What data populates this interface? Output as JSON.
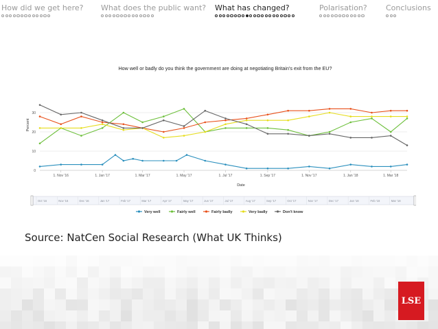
{
  "nav": {
    "sections": [
      {
        "label": "How did we get here?",
        "dots": 13,
        "active": false,
        "filled": -1
      },
      {
        "label": "What does the public want?",
        "dots": 14,
        "active": false,
        "filled": -1
      },
      {
        "label": "What has changed?",
        "dots": 21,
        "active": true,
        "filled": 8
      },
      {
        "label": "Polarisation?",
        "dots": 12,
        "active": false,
        "filled": -1
      },
      {
        "label": "Conclusions",
        "dots": 3,
        "active": false,
        "filled": -1
      }
    ]
  },
  "source_text": "Source: NatCen Social Research (What UK Thinks)",
  "logo_text": "LSE",
  "colors": {
    "very_well": "#2a8fbd",
    "fairly_well": "#6cbf3a",
    "fairly_badly": "#e8501a",
    "very_badly": "#e6dd1e",
    "dont_know": "#666666",
    "logo": "#d61a21"
  },
  "chart_data": {
    "type": "line",
    "title": "How well or badly do you think the government are doing at negotiating Britain's exit from the EU?",
    "xlabel": "Date",
    "ylabel": "Percent",
    "ylim": [
      0,
      45
    ],
    "yticks": [
      0,
      10,
      20,
      30
    ],
    "x_tick_labels": [
      "1. Nov '16",
      "1. Jan '17",
      "1. Mar '17",
      "1. May '17",
      "1. Jul '17",
      "1. Sep '17",
      "1. Nov '17",
      "1. Jan '18",
      "1. Mar '18"
    ],
    "navigator_labels": [
      "Oct '16",
      "Nov '16",
      "Dec '16",
      "Jan '17",
      "Feb '17",
      "Mar '17",
      "Apr '17",
      "May '17",
      "Jun '17",
      "Jul '17",
      "Aug '17",
      "Sep '17",
      "Oct '17",
      "Nov '17",
      "Dec '17",
      "Jan '18",
      "Feb '18",
      "Mar '18"
    ],
    "legend_position": "bottom",
    "grid": true,
    "series": [
      {
        "name": "Very well",
        "color_key": "very_well",
        "x": [
          "2016-10-01",
          "2016-11-01",
          "2016-12-01",
          "2017-01-01",
          "2017-01-20",
          "2017-02-01",
          "2017-02-15",
          "2017-03-01",
          "2017-04-01",
          "2017-04-20",
          "2017-05-05",
          "2017-06-01",
          "2017-07-01",
          "2017-08-01",
          "2017-09-01",
          "2017-10-01",
          "2017-11-01",
          "2017-12-01",
          "2018-01-01",
          "2018-02-01",
          "2018-03-01",
          "2018-03-25"
        ],
        "y": [
          2,
          3,
          3,
          3,
          8,
          5,
          6,
          5,
          5,
          5,
          8,
          5,
          3,
          1,
          1,
          1,
          2,
          1,
          3,
          2,
          2,
          3
        ]
      },
      {
        "name": "Fairly well",
        "color_key": "fairly_well",
        "x": [
          "2016-10-01",
          "2016-11-01",
          "2016-12-01",
          "2017-01-01",
          "2017-02-01",
          "2017-03-01",
          "2017-04-01",
          "2017-05-01",
          "2017-06-01",
          "2017-07-01",
          "2017-08-01",
          "2017-09-01",
          "2017-10-01",
          "2017-11-01",
          "2017-12-01",
          "2018-01-01",
          "2018-02-01",
          "2018-03-01",
          "2018-03-25"
        ],
        "y": [
          14,
          22,
          18,
          22,
          30,
          25,
          28,
          32,
          20,
          22,
          22,
          22,
          21,
          18,
          20,
          25,
          27,
          20,
          27
        ]
      },
      {
        "name": "Fairly badly",
        "color_key": "fairly_badly",
        "x": [
          "2016-10-01",
          "2016-11-01",
          "2016-12-01",
          "2017-01-01",
          "2017-02-01",
          "2017-03-01",
          "2017-04-01",
          "2017-05-01",
          "2017-06-01",
          "2017-07-01",
          "2017-08-01",
          "2017-09-01",
          "2017-10-01",
          "2017-11-01",
          "2017-12-01",
          "2018-01-01",
          "2018-02-01",
          "2018-03-01",
          "2018-03-25"
        ],
        "y": [
          28,
          24,
          28,
          25,
          24,
          22,
          20,
          22,
          25,
          26,
          27,
          29,
          31,
          31,
          32,
          32,
          30,
          31,
          31
        ]
      },
      {
        "name": "Very badly",
        "color_key": "very_badly",
        "x": [
          "2016-10-01",
          "2016-11-01",
          "2016-12-01",
          "2017-01-01",
          "2017-02-01",
          "2017-03-01",
          "2017-04-01",
          "2017-05-01",
          "2017-06-01",
          "2017-07-01",
          "2017-08-01",
          "2017-09-01",
          "2017-10-01",
          "2017-11-01",
          "2017-12-01",
          "2018-01-01",
          "2018-02-01",
          "2018-03-01",
          "2018-03-25"
        ],
        "y": [
          22,
          22,
          22,
          24,
          21,
          22,
          17,
          18,
          20,
          24,
          26,
          26,
          26,
          28,
          30,
          28,
          28,
          28,
          28
        ]
      },
      {
        "name": "Don't know",
        "color_key": "dont_know",
        "x": [
          "2016-10-01",
          "2016-11-01",
          "2016-12-01",
          "2017-01-01",
          "2017-02-01",
          "2017-03-01",
          "2017-04-01",
          "2017-05-01",
          "2017-06-01",
          "2017-07-01",
          "2017-08-01",
          "2017-09-01",
          "2017-10-01",
          "2017-11-01",
          "2017-12-01",
          "2018-01-01",
          "2018-02-01",
          "2018-03-01",
          "2018-03-25"
        ],
        "y": [
          34,
          29,
          30,
          26,
          22,
          22,
          26,
          23,
          31,
          27,
          24,
          19,
          19,
          18,
          19,
          17,
          17,
          18,
          13
        ]
      }
    ]
  }
}
